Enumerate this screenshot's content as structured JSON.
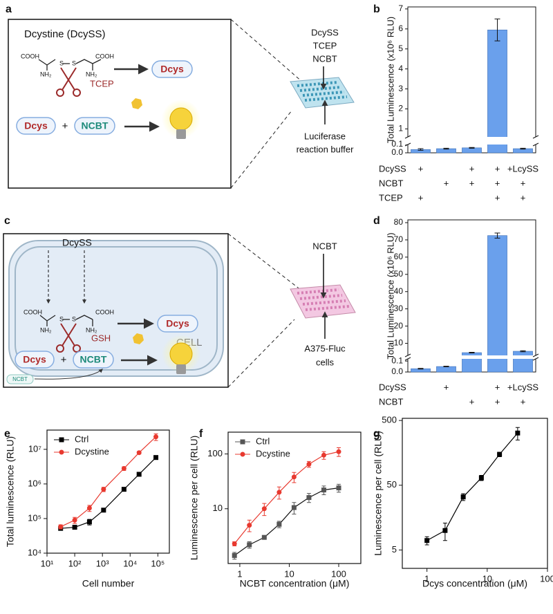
{
  "panel_labels": [
    "a",
    "b",
    "c",
    "d",
    "e",
    "f",
    "g"
  ],
  "scheme_a": {
    "title": "Dcystine (DcySS)",
    "cooh_left": "COOH",
    "nh2_left": "NH₂",
    "s1": "S",
    "s2": "S",
    "cooh_right": "COOH",
    "nh2_right": "NH₂",
    "reductant": "TCEP",
    "product": "Dcys",
    "reactant1": "Dcys",
    "plus": "+",
    "reactant2": "NCBT"
  },
  "plate_a": {
    "reagents": [
      "DcySS",
      "TCEP",
      "NCBT"
    ],
    "buffer": [
      "Luciferase",
      "reaction buffer"
    ]
  },
  "scheme_c": {
    "substrate": "DcySS",
    "cooh_left": "COOH",
    "nh2_left": "NH₂",
    "s1": "S",
    "s2": "S",
    "cooh_right": "COOH",
    "nh2_right": "NH₂",
    "reductant": "GSH",
    "product": "Dcys",
    "compartment": "CELL",
    "reactant1": "Dcys",
    "plus": "+",
    "reactant2": "NCBT",
    "outside": "NCBT"
  },
  "plate_c": {
    "reagent": "NCBT",
    "cells": [
      "A375-Fluc",
      "cells"
    ]
  },
  "chart_data": [
    {
      "type": "bar",
      "ylabel": "Total Luminescence (x10⁶ RLU)",
      "color": "#6aa0ec",
      "values": [
        0.04,
        0.05,
        0.06,
        5.95,
        0.05
      ],
      "errors": [
        0.01,
        0.005,
        0.005,
        0.55,
        0.005
      ],
      "ylim": [
        0,
        7.1
      ],
      "ybreak": [
        0.1,
        0.6
      ],
      "yticks": [
        {
          "value": 0,
          "label": "0.0"
        },
        0.1,
        1,
        2,
        3,
        4,
        5,
        6,
        7
      ],
      "conditions": [
        {
          "label": "DcySS",
          "marks": [
            "+",
            null,
            "+",
            "+",
            "+LcySS"
          ]
        },
        {
          "label": "NCBT",
          "marks": [
            null,
            "+",
            "+",
            "+",
            "+"
          ]
        },
        {
          "label": "TCEP",
          "marks": [
            "+",
            null,
            null,
            "+",
            "+"
          ]
        }
      ]
    },
    {
      "type": "bar",
      "ylabel": "Total Luminescence (x10⁶ RLU)",
      "color": "#6aa0ec",
      "values": [
        0.03,
        0.05,
        4.6,
        72.5,
        5.4
      ],
      "errors": [
        0.003,
        0.003,
        0.2,
        1.5,
        0.3
      ],
      "ylim": [
        0,
        81.6
      ],
      "ybreak": [
        0.12,
        3
      ],
      "yticks": [
        {
          "value": 0,
          "label": "0.0"
        },
        0.1,
        10,
        20,
        30,
        40,
        50,
        60,
        70,
        80
      ],
      "conditions": [
        {
          "label": "DcySS",
          "marks": [
            null,
            "+",
            null,
            "+",
            "+LcySS"
          ]
        },
        {
          "label": "NCBT",
          "marks": [
            null,
            null,
            "+",
            "+",
            "+"
          ]
        }
      ]
    },
    {
      "type": "line",
      "xlabel": "Cell number",
      "ylabel": "Total luminescence (RLU)",
      "xscale": "log",
      "yscale": "log",
      "legend": "upper left",
      "x": [
        31,
        100,
        340,
        1100,
        6000,
        21000,
        85000
      ],
      "series": [
        {
          "name": "Ctrl",
          "color": "#000000",
          "marker": "square",
          "values": [
            52000,
            56000,
            80000,
            175000,
            700000,
            1900000,
            5800000
          ],
          "errors": [
            5000,
            5000,
            15000,
            12000,
            80000,
            100000,
            600000
          ]
        },
        {
          "name": "Dcystine",
          "color": "#e8392f",
          "marker": "circle",
          "values": [
            58000,
            90000,
            200000,
            700000,
            2800000,
            8000000,
            23000000
          ],
          "errors": [
            8000,
            18000,
            40000,
            100000,
            350000,
            700000,
            5000000
          ]
        }
      ],
      "xlim": [
        10,
        260000
      ],
      "ylim": [
        10000,
        36000000
      ],
      "xticks": [
        {
          "value": 10,
          "label": "10¹"
        },
        {
          "value": 100,
          "label": "10²"
        },
        {
          "value": 1000,
          "label": "10³"
        },
        {
          "value": 10000,
          "label": "10⁴"
        },
        {
          "value": 100000,
          "label": "10⁵"
        }
      ],
      "yticks": [
        {
          "value": 10000,
          "label": "10⁴"
        },
        {
          "value": 100000,
          "label": "10⁵"
        },
        {
          "value": 1000000,
          "label": "10⁶"
        },
        {
          "value": 10000000,
          "label": "10⁷"
        }
      ]
    },
    {
      "type": "line",
      "xlabel": "NCBT concentration (μM)",
      "ylabel": "Luminescence per cell (RLU)",
      "xscale": "log",
      "yscale": "log",
      "legend": "upper left",
      "x": [
        0.78,
        1.56,
        3.125,
        6.25,
        12.5,
        25,
        50,
        100
      ],
      "series": [
        {
          "name": "Ctrl",
          "color": "#555555",
          "marker": "square",
          "values": [
            1.4,
            2.2,
            3.0,
            5.2,
            10.5,
            16,
            22,
            24
          ],
          "errors": [
            0.2,
            0.3,
            0.2,
            0.7,
            2.5,
            3,
            4,
            4
          ]
        },
        {
          "name": "Dcystine",
          "color": "#e8392f",
          "marker": "circle",
          "values": [
            2.3,
            5,
            10,
            20,
            38,
            65,
            95,
            110
          ],
          "errors": [
            0.2,
            1.2,
            2.5,
            5,
            8,
            8,
            15,
            20
          ]
        }
      ],
      "xlim": [
        0.58,
        280
      ],
      "ylim": [
        1,
        250
      ],
      "xticks": [
        1,
        10,
        100
      ],
      "yticks": [
        10,
        100
      ]
    },
    {
      "type": "line",
      "xlabel": "Dcys concentration (μM)",
      "ylabel": "Luminescence per cell (RLU)",
      "xscale": "log",
      "yscale": "log",
      "x": [
        1,
        2,
        4,
        8,
        16,
        32
      ],
      "series": [
        {
          "color": "#000000",
          "marker": "square",
          "values": [
            7,
            10,
            33,
            65,
            150,
            320
          ],
          "errors": [
            1,
            3,
            4,
            6,
            12,
            70
          ]
        }
      ],
      "xlim": [
        0.39,
        100
      ],
      "ylim": [
        2.6,
        540
      ],
      "xticks": [
        1,
        10,
        100
      ],
      "yticks": [
        5,
        50,
        500
      ]
    }
  ]
}
